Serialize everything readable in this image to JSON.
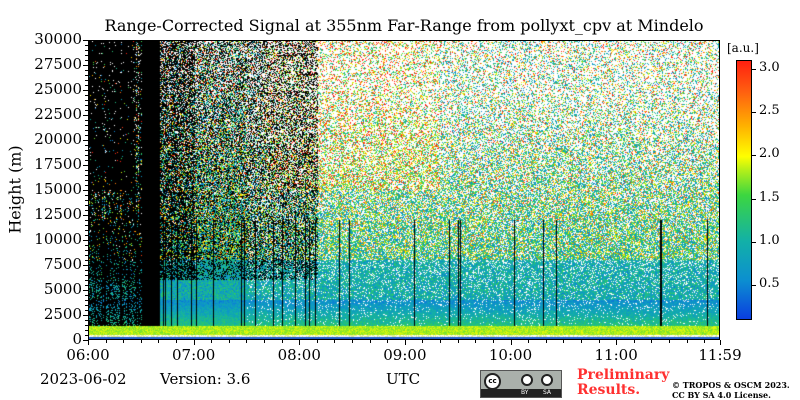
{
  "chart_data": {
    "type": "heatmap",
    "title": "Range-Corrected Signal at 355nm Far-Range from pollyxt_cpv at Mindelo",
    "xlabel": "UTC",
    "ylabel": "Height (m)",
    "x_ticks": [
      "06:00",
      "07:00",
      "08:00",
      "09:00",
      "10:00",
      "11:00",
      "11:59"
    ],
    "xlim": [
      "06:00",
      "11:59"
    ],
    "y_ticks": [
      "0",
      "2500",
      "5000",
      "7500",
      "10000",
      "12500",
      "15000",
      "17500",
      "20000",
      "22500",
      "25000",
      "27500",
      "30000"
    ],
    "ylim": [
      0,
      30000
    ],
    "colorbar": {
      "label": "[a.u.]",
      "ticks": [
        "0.5",
        "1.0",
        "1.5",
        "2.0",
        "2.5",
        "3.0"
      ],
      "range": [
        0.1,
        3.1
      ],
      "colormap": "jet"
    }
  },
  "footer": {
    "date": "2023-06-02",
    "version": "Version: 3.6",
    "preliminary": "Preliminary Results.",
    "copyright_line1": "© TROPOS & OSCM 2023.",
    "copyright_line2": "CC BY SA 4.0 License.",
    "license_badge": "CC BY SA"
  }
}
